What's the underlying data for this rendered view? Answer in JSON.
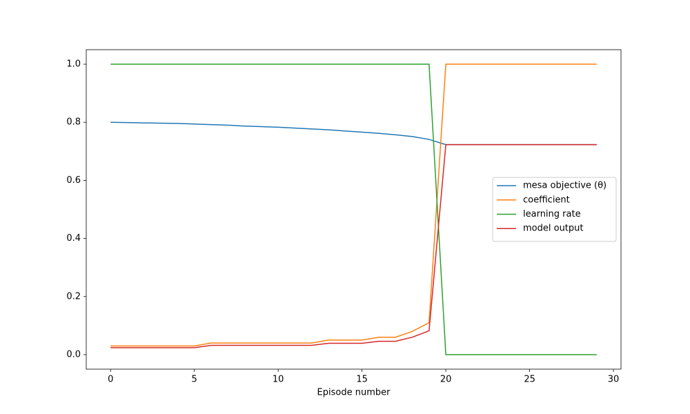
{
  "chart_data": {
    "type": "line",
    "x_label": "Episode number",
    "x": [
      0,
      1,
      2,
      3,
      4,
      5,
      6,
      7,
      8,
      9,
      10,
      11,
      12,
      13,
      14,
      15,
      16,
      17,
      18,
      19,
      20,
      21,
      22,
      23,
      24,
      25,
      26,
      27,
      28,
      29
    ],
    "series": [
      {
        "name": "mesa objective (θ)",
        "color": "#1f77b4",
        "values": [
          0.8,
          0.799,
          0.798,
          0.797,
          0.796,
          0.794,
          0.792,
          0.79,
          0.787,
          0.785,
          0.783,
          0.78,
          0.777,
          0.774,
          0.77,
          0.766,
          0.762,
          0.757,
          0.751,
          0.741,
          0.723,
          0.723,
          0.723,
          0.723,
          0.723,
          0.723,
          0.723,
          0.723,
          0.723,
          0.723
        ]
      },
      {
        "name": "coefficient",
        "color": "#ff7f0e",
        "values": [
          0.03,
          0.03,
          0.03,
          0.03,
          0.03,
          0.03,
          0.04,
          0.04,
          0.04,
          0.04,
          0.04,
          0.04,
          0.04,
          0.05,
          0.05,
          0.05,
          0.06,
          0.06,
          0.08,
          0.11,
          1.0,
          1.0,
          1.0,
          1.0,
          1.0,
          1.0,
          1.0,
          1.0,
          1.0,
          1.0
        ]
      },
      {
        "name": "learning rate",
        "color": "#2ca02c",
        "values": [
          1,
          1,
          1,
          1,
          1,
          1,
          1,
          1,
          1,
          1,
          1,
          1,
          1,
          1,
          1,
          1,
          1,
          1,
          1,
          1,
          0,
          0,
          0,
          0,
          0,
          0,
          0,
          0,
          0,
          0
        ]
      },
      {
        "name": "model output",
        "color": "#d62728",
        "values": [
          0.024,
          0.024,
          0.024,
          0.024,
          0.024,
          0.024,
          0.032,
          0.032,
          0.032,
          0.032,
          0.032,
          0.032,
          0.032,
          0.039,
          0.039,
          0.039,
          0.046,
          0.046,
          0.06,
          0.082,
          0.723,
          0.723,
          0.723,
          0.723,
          0.723,
          0.723,
          0.723,
          0.723,
          0.723,
          0.723
        ]
      }
    ],
    "xlim": [
      -1.45,
      30.45
    ],
    "ylim": [
      -0.05,
      1.05
    ],
    "xticks": [
      0,
      5,
      10,
      15,
      20,
      25,
      30
    ],
    "yticks": [
      {
        "value": 0,
        "label": "0.0"
      },
      {
        "value": 0.2,
        "label": "0.2"
      },
      {
        "value": 0.4,
        "label": "0.4"
      },
      {
        "value": 0.6,
        "label": "0.6"
      },
      {
        "value": 0.8,
        "label": "0.8"
      },
      {
        "value": 1,
        "label": "1.0"
      }
    ],
    "legend": "center right",
    "grid": false
  }
}
